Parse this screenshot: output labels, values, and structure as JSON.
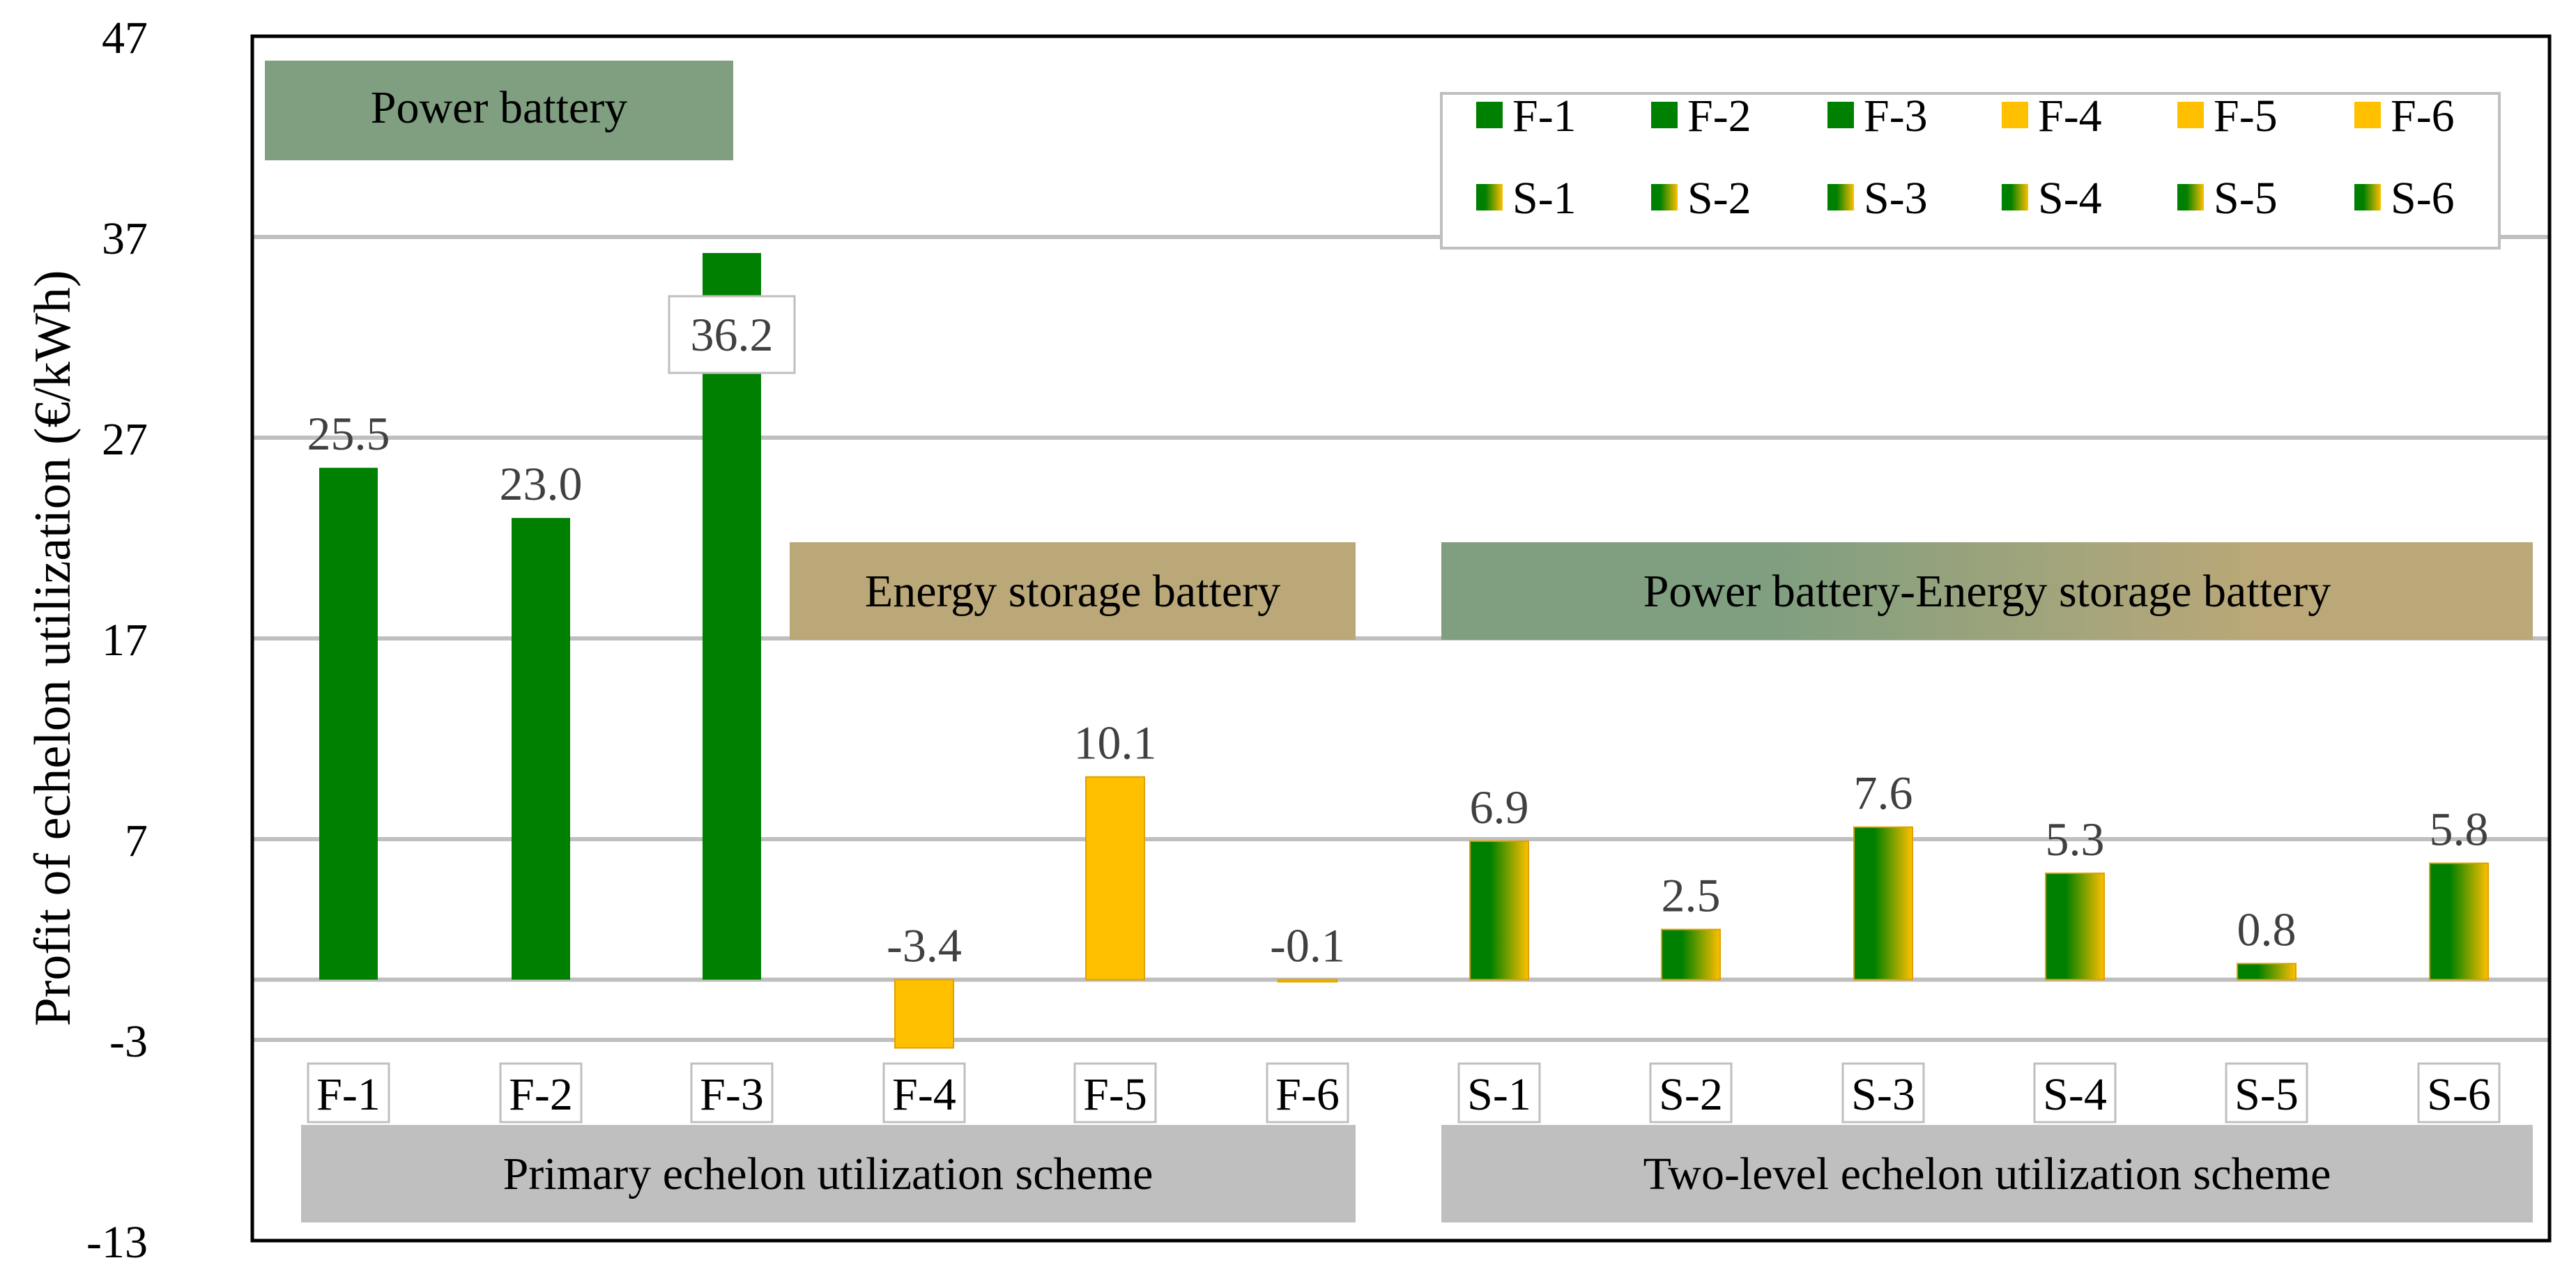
{
  "chart_data": {
    "type": "bar",
    "ylabel": "Profit of echelon utilization  (€/kWh)",
    "ylim": [
      -13,
      47
    ],
    "yticks": [
      47,
      37,
      27,
      17,
      7,
      -3,
      -13
    ],
    "grid": true,
    "categories": [
      "F-1",
      "F-2",
      "F-3",
      "F-4",
      "F-5",
      "F-6",
      "S-1",
      "S-2",
      "S-3",
      "S-4",
      "S-5",
      "S-6"
    ],
    "values": [
      25.5,
      23.0,
      36.2,
      -3.4,
      10.1,
      -0.1,
      6.9,
      2.5,
      7.6,
      5.3,
      0.8,
      5.8
    ],
    "value_labels": [
      "25.5",
      "23.0",
      "36.2",
      "-3.4",
      "10.1",
      "-0.1",
      "6.9",
      "2.5",
      "7.6",
      "5.3",
      "0.8",
      "5.8"
    ],
    "bar_kind": [
      "green",
      "green",
      "green",
      "yellow",
      "yellow",
      "yellow",
      "gradient",
      "gradient",
      "gradient",
      "gradient",
      "gradient",
      "gradient"
    ],
    "highlighted_label": "36.2",
    "legend": {
      "position": "top-right",
      "rows": [
        [
          "F-1",
          "F-2",
          "F-3",
          "F-4",
          "F-5",
          "F-6"
        ],
        [
          "S-1",
          "S-2",
          "S-3",
          "S-4",
          "S-5",
          "S-6"
        ]
      ]
    },
    "annotations": {
      "power_battery": "Power battery",
      "energy_storage_battery": "Energy storage battery",
      "combined_battery": "Power battery-Energy storage battery",
      "primary_scheme": "Primary echelon utilization  scheme",
      "two_level_scheme": "Two-level  echelon utilization  scheme"
    },
    "colors": {
      "green": "#008000",
      "yellow": "#FFC000",
      "power_banner": "#7F9F80",
      "energy_banner": "#BBA878",
      "scheme_banner": "#BFBFBF",
      "grid": "#BFBFBF",
      "axis": "#000000"
    }
  }
}
